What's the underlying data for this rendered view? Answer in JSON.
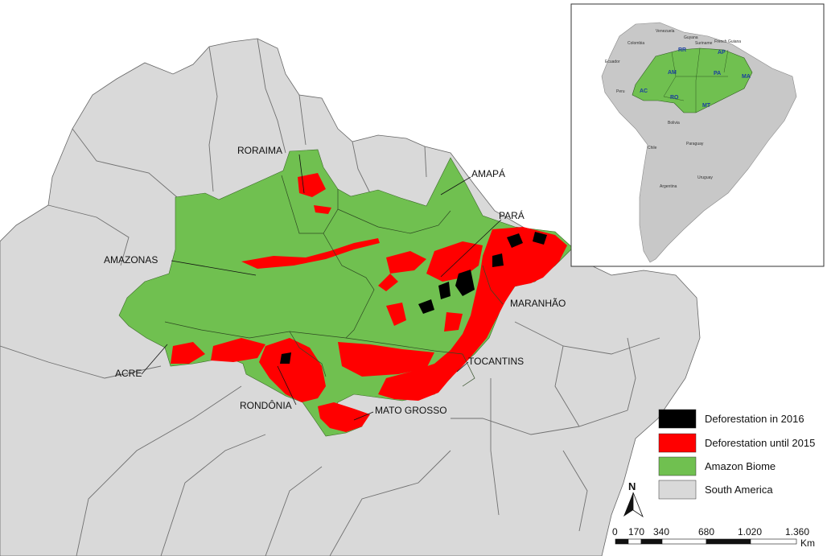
{
  "colors": {
    "deforestation_2016": "#000000",
    "deforestation_until_2015": "#ff0000",
    "amazon_biome": "#70c050",
    "south_america": "#d9d9d9",
    "border": "#555555",
    "water": "#ffffff"
  },
  "states": {
    "roraima": "RORAIMA",
    "amapa": "AMAPÁ",
    "para": "PARÁ",
    "amazonas": "AMAZONAS",
    "maranhao": "MARANHÃO",
    "tocantins": "TOCANTINS",
    "acre": "ACRE",
    "rondonia": "RONDÔNIA",
    "mato_grosso": "MATO GROSSO"
  },
  "inset": {
    "countries": {
      "venezuela": "Venezuela",
      "guyana": "Guyana",
      "suriname": "Suriname",
      "french_guiana": "French Guiana",
      "colombia": "Colombia",
      "ecuador": "Ecuador",
      "peru": "Peru",
      "bolivia": "Bolivia",
      "chile": "Chile",
      "paraguay": "Paraguay",
      "uruguay": "Uruguay",
      "argentina": "Argentina"
    },
    "abbrev": {
      "rr": "RR",
      "ap": "AP",
      "am": "AM",
      "pa": "PA",
      "ma": "MA",
      "ac": "AC",
      "ro": "RO",
      "mt": "MT"
    }
  },
  "legend": {
    "items": [
      {
        "label": "Deforestation in 2016",
        "color": "#000000"
      },
      {
        "label": "Deforestation until 2015",
        "color": "#ff0000"
      },
      {
        "label": "Amazon Biome",
        "color": "#70c050"
      },
      {
        "label": "South America",
        "color": "#d9d9d9"
      }
    ]
  },
  "north_arrow": {
    "label": "N"
  },
  "scale_bar": {
    "ticks": [
      "0",
      "170",
      "340",
      "680",
      "1.020",
      "1.360"
    ],
    "unit": "Km"
  }
}
